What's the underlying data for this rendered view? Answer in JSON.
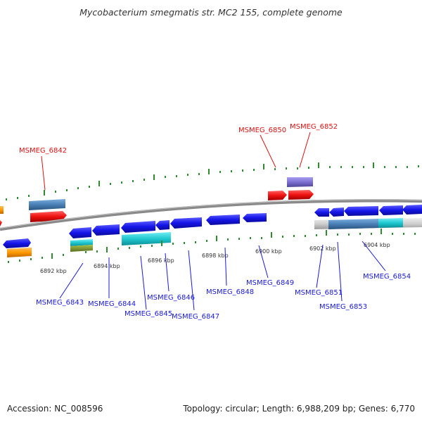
{
  "header": {
    "title": "Mycobacterium smegmatis str. MC2 155, complete genome"
  },
  "footer": {
    "accession": "Accession: NC_008596",
    "topology": "Topology: circular; Length: 6,988,209 bp; Genes: 6,770"
  },
  "colors": {
    "backbone": "#8a8a8a",
    "forward_gene": "#1515e8",
    "reverse_gene": "#1515e8",
    "red_feature": "#ee1111",
    "orange_feature": "#ff9900",
    "cyan_feature": "#20c8d0",
    "steel_feature": "#4a7fb5",
    "purple_feature": "#7a6fcf",
    "tick": "#2e8b2e"
  },
  "scale": {
    "ticks": [
      "6892 kbp",
      "6894 kbp",
      "6896 kbp",
      "6898 kbp",
      "6900 kbp",
      "6902 kbp",
      "6904 kbp"
    ]
  },
  "gene_labels": {
    "red": [
      "MSMEG_6842",
      "MSMEG_6850",
      "MSMEG_6852"
    ],
    "blue": [
      "MSMEG_6843",
      "MSMEG_6844",
      "MSMEG_6845",
      "MSMEG_6846",
      "MSMEG_6847",
      "MSMEG_6848",
      "MSMEG_6849",
      "MSMEG_6851",
      "MSMEG_6853",
      "MSMEG_6854"
    ]
  }
}
